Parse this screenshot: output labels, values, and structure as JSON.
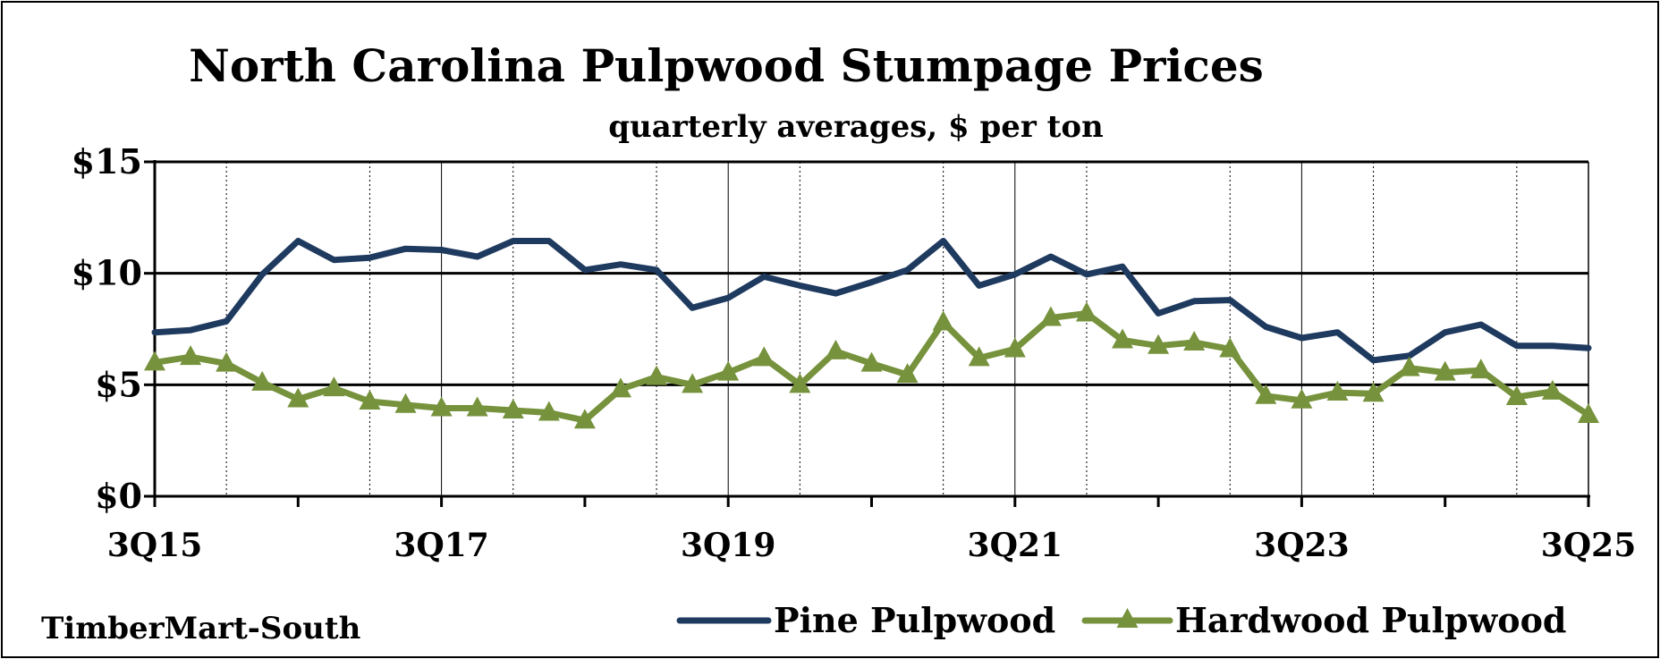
{
  "chart_data": {
    "type": "line",
    "title": "North Carolina Pulpwood Stumpage Prices",
    "subtitle": "quarterly averages, $ per ton",
    "source": "TimberMart-South",
    "x": [
      "3Q15",
      "4Q15",
      "1Q16",
      "2Q16",
      "3Q16",
      "4Q16",
      "1Q17",
      "2Q17",
      "3Q17",
      "4Q17",
      "1Q18",
      "2Q18",
      "3Q18",
      "4Q18",
      "1Q19",
      "2Q19",
      "3Q19",
      "4Q19",
      "1Q20",
      "2Q20",
      "3Q20",
      "4Q20",
      "1Q21",
      "2Q21",
      "3Q21",
      "4Q21",
      "1Q22",
      "2Q22",
      "3Q22",
      "4Q22",
      "1Q23",
      "2Q23",
      "3Q23",
      "4Q23",
      "1Q24",
      "2Q24",
      "3Q24",
      "4Q24",
      "1Q25",
      "2Q25",
      "3Q25"
    ],
    "x_tick_labels": [
      "3Q15",
      "3Q17",
      "3Q19",
      "3Q21",
      "3Q23",
      "3Q25"
    ],
    "y_tick_labels": [
      "$0",
      "$5",
      "$10",
      "$15"
    ],
    "ylim": [
      0,
      15
    ],
    "y_ticks": [
      0,
      5,
      10,
      15
    ],
    "grid": true,
    "legend_position": "bottom-right",
    "series": [
      {
        "name": "Pine Pulpwood",
        "color": "#1f3a5f",
        "marker": "none",
        "values": [
          7.35,
          7.45,
          7.85,
          9.95,
          11.45,
          10.6,
          10.7,
          11.1,
          11.05,
          10.75,
          11.45,
          11.45,
          10.15,
          10.4,
          10.15,
          8.45,
          8.9,
          9.85,
          9.45,
          9.1,
          9.6,
          10.15,
          11.45,
          9.45,
          9.95,
          10.75,
          9.95,
          10.3,
          8.2,
          8.75,
          8.8,
          7.6,
          7.1,
          7.35,
          6.1,
          6.3,
          7.35,
          7.7,
          6.75,
          6.75,
          6.65
        ]
      },
      {
        "name": "Hardwood Pulpwood",
        "color": "#76923c",
        "marker": "triangle",
        "values": [
          6.0,
          6.25,
          5.95,
          5.1,
          4.35,
          4.85,
          4.25,
          4.1,
          3.95,
          3.95,
          3.85,
          3.75,
          3.4,
          4.8,
          5.35,
          5.0,
          5.55,
          6.2,
          5.0,
          6.5,
          5.95,
          5.45,
          7.8,
          6.2,
          6.6,
          8.0,
          8.2,
          7.0,
          6.75,
          6.9,
          6.6,
          4.5,
          4.3,
          4.65,
          4.6,
          5.75,
          5.55,
          5.65,
          4.45,
          4.7,
          3.65
        ]
      }
    ]
  }
}
